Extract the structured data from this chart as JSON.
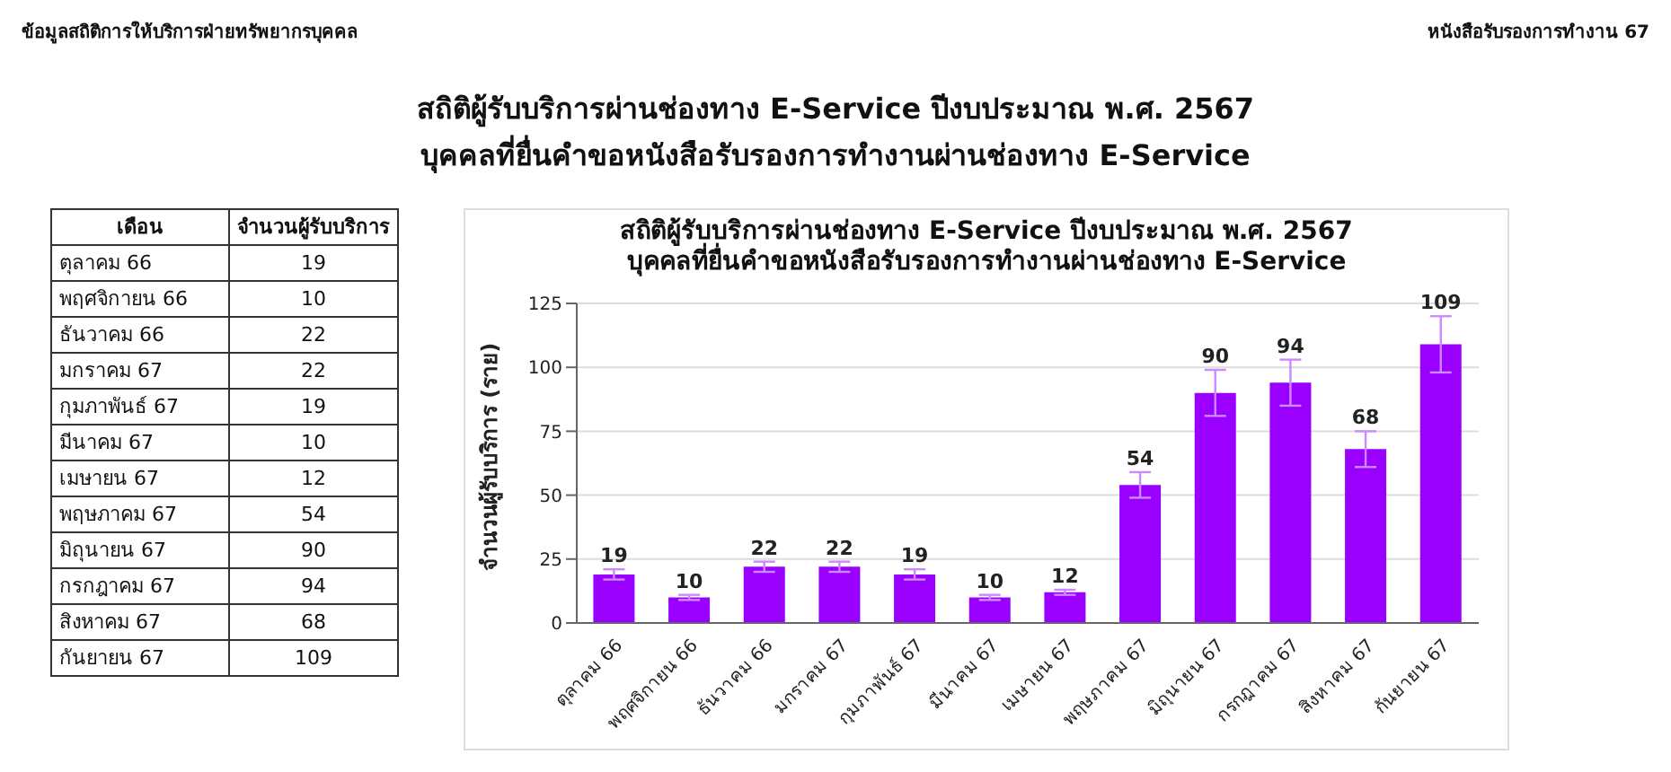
{
  "chart_data": {
    "type": "bar",
    "title": "สถิติผู้รับบริการผ่านช่องทาง E-Service ปีงบประมาณ พ.ศ. 2567\nบุคคลที่ยื่นคำขอหนังสือรับรองการทำงานผ่านช่องทาง E-Service",
    "ylabel": "จำนวนผู้รับบริการ (ราย)",
    "annotations": [
      "ข้อมูลสถิติการให้บริการฝ่ายทรัพยากรบุคคล",
      "หนังสือรับรองการทำงาน 67",
      "สถิติผู้รับบริการผ่านช่องทาง E-Service ปีงบประมาณ พ.ศ. 2567",
      "บุคคลที่ยื่นคำขอหนังสือรับรองการทำงานผ่านช่องทาง E-Service",
      "เดือน",
      "จำนวนผู้รับบริการ"
    ],
    "categories": [
      "ตุลาคม 66",
      "พฤศจิกายน 66",
      "ธันวาคม 66",
      "มกราคม 67",
      "กุมภาพันธ์ 67",
      "มีนาคม 67",
      "เมษายน 67",
      "พฤษภาคม 67",
      "มิถุนายน 67",
      "กรกฎาคม 67",
      "สิงหาคม 67",
      "กันยายน 67"
    ],
    "values": [
      19,
      10,
      22,
      22,
      19,
      10,
      12,
      54,
      90,
      94,
      68,
      109
    ],
    "errors": [
      2,
      1,
      2,
      2,
      2,
      1,
      1,
      5,
      9,
      9,
      7,
      11
    ],
    "color": "#9900ff",
    "ylim": [
      0,
      125
    ],
    "yticks": [
      0,
      25,
      50,
      75,
      100,
      125
    ],
    "grid": "y",
    "value_labels": [
      "19",
      "10",
      "22",
      "22",
      "19",
      "10",
      "12",
      "54",
      "90",
      "94",
      "68",
      "109"
    ]
  }
}
